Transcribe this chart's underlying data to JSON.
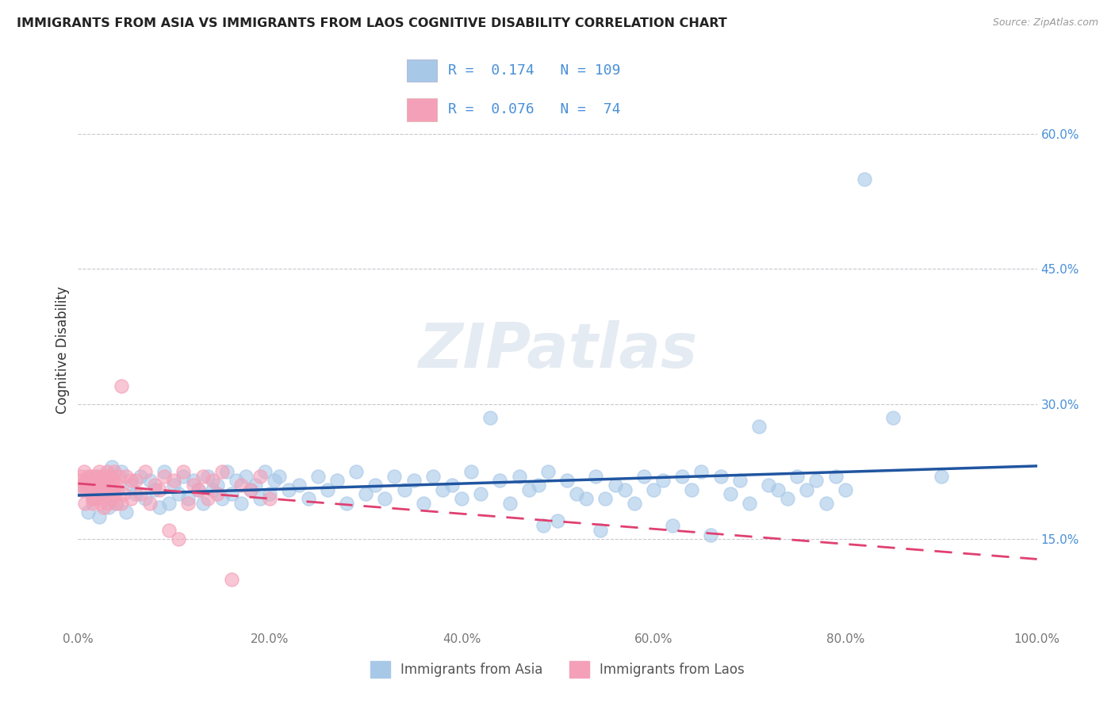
{
  "title": "IMMIGRANTS FROM ASIA VS IMMIGRANTS FROM LAOS COGNITIVE DISABILITY CORRELATION CHART",
  "source": "Source: ZipAtlas.com",
  "ylabel": "Cognitive Disability",
  "xlim": [
    0,
    100
  ],
  "ylim": [
    5,
    67
  ],
  "yticks": [
    15,
    30,
    45,
    60
  ],
  "ytick_labels": [
    "15.0%",
    "30.0%",
    "45.0%",
    "60.0%"
  ],
  "xticks": [
    0,
    20,
    40,
    60,
    80,
    100
  ],
  "xtick_labels": [
    "0.0%",
    "20.0%",
    "40.0%",
    "60.0%",
    "80.0%",
    "100.0%"
  ],
  "asia_color": "#a8c8e8",
  "laos_color": "#f4a0b8",
  "asia_line_color": "#2055a0",
  "laos_line_color": "#e04070",
  "asia_R": 0.174,
  "asia_N": 109,
  "laos_R": 0.076,
  "laos_N": 74,
  "background_color": "#ffffff",
  "grid_color": "#c8c8d0",
  "watermark": "ZIPatlas",
  "asia_scatter_x": [
    0.5,
    1.0,
    1.2,
    1.5,
    2.0,
    2.2,
    2.5,
    3.0,
    3.2,
    3.5,
    4.0,
    4.5,
    5.0,
    5.5,
    6.0,
    6.5,
    7.0,
    7.5,
    8.0,
    8.5,
    9.0,
    9.5,
    10.0,
    10.5,
    11.0,
    11.5,
    12.0,
    12.5,
    13.0,
    13.5,
    14.0,
    14.5,
    15.0,
    15.5,
    16.0,
    16.5,
    17.0,
    17.5,
    18.0,
    18.5,
    19.0,
    19.5,
    20.0,
    20.5,
    21.0,
    22.0,
    23.0,
    24.0,
    25.0,
    26.0,
    27.0,
    28.0,
    29.0,
    30.0,
    31.0,
    32.0,
    33.0,
    34.0,
    35.0,
    36.0,
    37.0,
    38.0,
    39.0,
    40.0,
    41.0,
    42.0,
    43.0,
    44.0,
    45.0,
    46.0,
    47.0,
    48.0,
    48.5,
    49.0,
    50.0,
    51.0,
    52.0,
    53.0,
    54.0,
    54.5,
    55.0,
    56.0,
    57.0,
    58.0,
    59.0,
    60.0,
    61.0,
    62.0,
    63.0,
    64.0,
    65.0,
    66.0,
    67.0,
    68.0,
    69.0,
    70.0,
    71.0,
    72.0,
    73.0,
    74.0,
    75.0,
    76.0,
    77.0,
    78.0,
    79.0,
    80.0,
    82.0,
    85.0,
    90.0
  ],
  "asia_scatter_y": [
    20.5,
    18.0,
    21.0,
    19.5,
    22.0,
    17.5,
    20.0,
    21.5,
    18.5,
    23.0,
    19.0,
    22.5,
    18.0,
    21.0,
    20.0,
    22.0,
    19.5,
    21.5,
    20.5,
    18.5,
    22.5,
    19.0,
    21.0,
    20.0,
    22.0,
    19.5,
    21.5,
    20.5,
    19.0,
    22.0,
    20.5,
    21.0,
    19.5,
    22.5,
    20.0,
    21.5,
    19.0,
    22.0,
    20.5,
    21.0,
    19.5,
    22.5,
    20.0,
    21.5,
    22.0,
    20.5,
    21.0,
    19.5,
    22.0,
    20.5,
    21.5,
    19.0,
    22.5,
    20.0,
    21.0,
    19.5,
    22.0,
    20.5,
    21.5,
    19.0,
    22.0,
    20.5,
    21.0,
    19.5,
    22.5,
    20.0,
    28.5,
    21.5,
    19.0,
    22.0,
    20.5,
    21.0,
    16.5,
    22.5,
    17.0,
    21.5,
    20.0,
    19.5,
    22.0,
    16.0,
    19.5,
    21.0,
    20.5,
    19.0,
    22.0,
    20.5,
    21.5,
    16.5,
    22.0,
    20.5,
    22.5,
    15.5,
    22.0,
    20.0,
    21.5,
    19.0,
    27.5,
    21.0,
    20.5,
    19.5,
    22.0,
    20.5,
    21.5,
    19.0,
    22.0,
    20.5,
    55.0,
    28.5,
    22.0
  ],
  "laos_scatter_x": [
    0.2,
    0.3,
    0.4,
    0.5,
    0.6,
    0.7,
    0.8,
    0.9,
    1.0,
    1.1,
    1.2,
    1.3,
    1.4,
    1.5,
    1.6,
    1.7,
    1.8,
    1.9,
    2.0,
    2.1,
    2.2,
    2.3,
    2.4,
    2.5,
    2.6,
    2.7,
    2.8,
    2.9,
    3.0,
    3.1,
    3.2,
    3.3,
    3.4,
    3.5,
    3.6,
    3.7,
    3.8,
    3.9,
    4.0,
    4.1,
    4.3,
    4.5,
    4.8,
    5.0,
    5.5,
    6.0,
    6.5,
    7.0,
    7.5,
    8.0,
    8.5,
    9.0,
    9.5,
    10.0,
    10.5,
    11.0,
    11.5,
    12.0,
    12.5,
    13.0,
    13.5,
    14.0,
    14.5,
    15.0,
    16.0,
    17.0,
    18.0,
    19.0,
    20.0,
    1.5,
    2.5,
    3.5,
    4.5,
    5.5
  ],
  "laos_scatter_y": [
    21.5,
    22.0,
    20.5,
    21.0,
    22.5,
    19.0,
    21.5,
    20.5,
    22.0,
    21.0,
    20.5,
    21.5,
    22.0,
    19.5,
    21.0,
    20.5,
    22.0,
    19.5,
    21.5,
    20.0,
    22.5,
    19.0,
    21.0,
    20.5,
    22.0,
    18.5,
    21.5,
    20.0,
    22.5,
    19.0,
    21.0,
    20.5,
    22.0,
    19.5,
    21.5,
    20.0,
    22.5,
    19.0,
    21.0,
    20.5,
    22.0,
    32.0,
    20.0,
    22.0,
    19.5,
    21.5,
    20.0,
    22.5,
    19.0,
    21.0,
    20.5,
    22.0,
    16.0,
    21.5,
    15.0,
    22.5,
    19.0,
    21.0,
    20.5,
    22.0,
    19.5,
    21.5,
    20.0,
    22.5,
    10.5,
    21.0,
    20.5,
    22.0,
    19.5,
    19.0,
    22.0,
    20.5,
    19.0,
    21.5
  ],
  "legend_asia_label": "R =  0.174   N = 109",
  "legend_laos_label": "R =  0.076   N =  74"
}
